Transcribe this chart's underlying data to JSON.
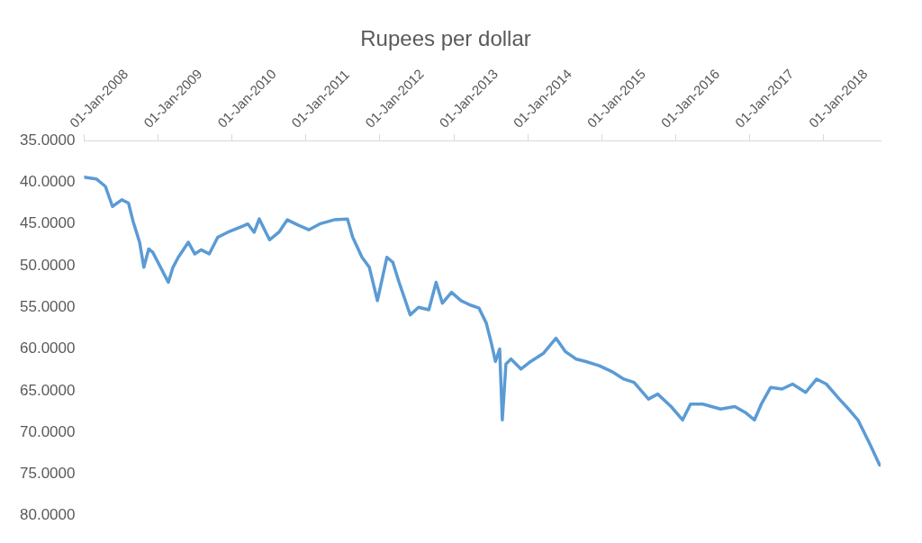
{
  "chart_data": {
    "type": "line",
    "title": "Rupees per dollar",
    "x": [
      "2008-01-01",
      "2008-03-01",
      "2008-04-15",
      "2008-05-20",
      "2008-07-05",
      "2008-08-07",
      "2008-08-30",
      "2008-10-01",
      "2008-10-22",
      "2008-11-15",
      "2008-12-05",
      "2009-02-20",
      "2009-03-15",
      "2009-04-10",
      "2009-05-30",
      "2009-07-01",
      "2009-08-01",
      "2009-09-10",
      "2009-10-22",
      "2009-12-10",
      "2010-02-20",
      "2010-03-20",
      "2010-04-20",
      "2010-05-15",
      "2010-07-05",
      "2010-08-20",
      "2010-10-01",
      "2010-11-20",
      "2011-01-15",
      "2011-03-10",
      "2011-05-20",
      "2011-07-25",
      "2011-08-20",
      "2011-10-05",
      "2011-11-10",
      "2011-12-20",
      "2012-02-05",
      "2012-03-05",
      "2012-04-05",
      "2012-05-30",
      "2012-07-10",
      "2012-08-30",
      "2012-10-05",
      "2012-11-05",
      "2012-12-20",
      "2013-02-05",
      "2013-03-20",
      "2013-05-05",
      "2013-06-10",
      "2013-07-05",
      "2013-07-25",
      "2013-08-15",
      "2013-08-28",
      "2013-09-15",
      "2013-10-10",
      "2013-11-28",
      "2014-01-15",
      "2014-03-20",
      "2014-05-20",
      "2014-07-05",
      "2014-08-28",
      "2014-10-15",
      "2014-12-20",
      "2015-02-20",
      "2015-04-20",
      "2015-06-10",
      "2015-08-20",
      "2015-10-05",
      "2015-12-10",
      "2016-02-05",
      "2016-03-15",
      "2016-05-15",
      "2016-08-10",
      "2016-10-20",
      "2016-12-10",
      "2017-01-25",
      "2017-02-28",
      "2017-04-15",
      "2017-06-10",
      "2017-08-01",
      "2017-10-05",
      "2017-11-28",
      "2018-01-15",
      "2018-03-20",
      "2018-05-05",
      "2018-06-20",
      "2018-08-20",
      "2018-10-05"
    ],
    "series": [
      {
        "color": "#5b9bd5",
        "values": [
          39.4,
          39.6,
          40.5,
          42.9,
          42.1,
          42.5,
          44.7,
          47.2,
          50.2,
          48.0,
          48.4,
          52.0,
          50.2,
          49.0,
          47.2,
          48.6,
          48.1,
          48.6,
          46.6,
          46.0,
          45.3,
          45.0,
          46.0,
          44.4,
          46.9,
          46.0,
          44.5,
          45.1,
          45.7,
          45.0,
          44.5,
          44.4,
          46.6,
          49.0,
          50.2,
          54.2,
          49.0,
          49.6,
          52.0,
          55.9,
          55.0,
          55.3,
          52.0,
          54.5,
          53.2,
          54.2,
          54.7,
          55.1,
          56.9,
          59.3,
          61.5,
          60.0,
          68.5,
          61.8,
          61.2,
          62.4,
          61.5,
          60.5,
          58.7,
          60.3,
          61.2,
          61.5,
          62.0,
          62.7,
          63.6,
          64.0,
          66.0,
          65.4,
          66.9,
          68.5,
          66.6,
          66.6,
          67.2,
          66.9,
          67.6,
          68.5,
          66.6,
          64.6,
          64.8,
          64.2,
          65.2,
          63.6,
          64.2,
          66.0,
          67.2,
          68.5,
          71.5,
          73.9
        ]
      }
    ],
    "xlim": [
      "2008-01-01",
      "2018-10-10"
    ],
    "xticks": [
      {
        "value": "2008-01-01",
        "label": "01-Jan-2008"
      },
      {
        "value": "2009-01-01",
        "label": "01-Jan-2009"
      },
      {
        "value": "2010-01-01",
        "label": "01-Jan-2010"
      },
      {
        "value": "2011-01-01",
        "label": "01-Jan-2011"
      },
      {
        "value": "2012-01-01",
        "label": "01-Jan-2012"
      },
      {
        "value": "2013-01-01",
        "label": "01-Jan-2013"
      },
      {
        "value": "2014-01-01",
        "label": "01-Jan-2014"
      },
      {
        "value": "2015-01-01",
        "label": "01-Jan-2015"
      },
      {
        "value": "2016-01-01",
        "label": "01-Jan-2016"
      },
      {
        "value": "2017-01-01",
        "label": "01-Jan-2017"
      },
      {
        "value": "2018-01-01",
        "label": "01-Jan-2018"
      }
    ],
    "ylim": [
      80,
      35
    ],
    "yticks": [
      {
        "value": 35,
        "label": "35.0000"
      },
      {
        "value": 40,
        "label": "40.0000"
      },
      {
        "value": 45,
        "label": "45.0000"
      },
      {
        "value": 50,
        "label": "50.0000"
      },
      {
        "value": 55,
        "label": "55.0000"
      },
      {
        "value": 60,
        "label": "60.0000"
      },
      {
        "value": 65,
        "label": "65.0000"
      },
      {
        "value": 70,
        "label": "70.0000"
      },
      {
        "value": 75,
        "label": "75.0000"
      },
      {
        "value": 80,
        "label": "80.0000"
      }
    ],
    "marker": "none",
    "line_style": "solid"
  }
}
